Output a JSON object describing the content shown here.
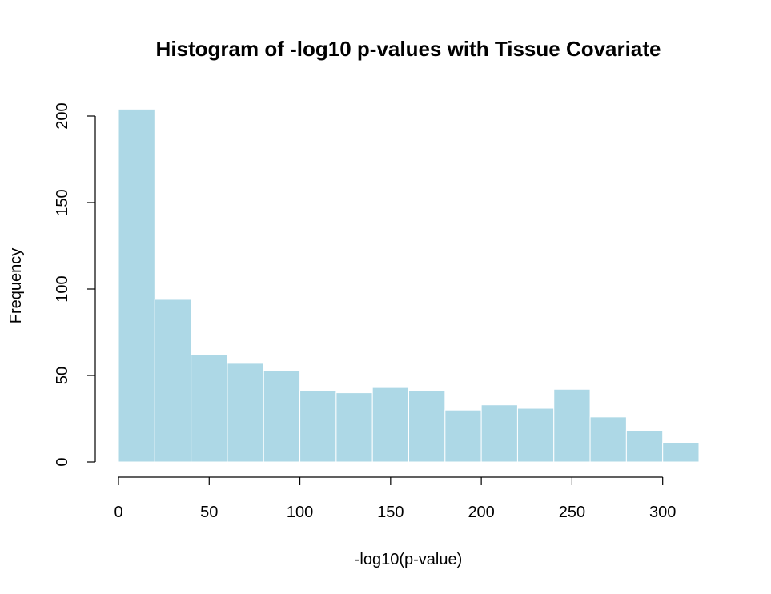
{
  "chart_data": {
    "type": "bar",
    "subtype": "histogram",
    "title": "Histogram of -log10 p-values with Tissue Covariate",
    "xlabel": "-log10(p-value)",
    "ylabel": "Frequency",
    "bins": [
      {
        "x0": 0,
        "x1": 20,
        "count": 204
      },
      {
        "x0": 20,
        "x1": 40,
        "count": 94
      },
      {
        "x0": 40,
        "x1": 60,
        "count": 62
      },
      {
        "x0": 60,
        "x1": 80,
        "count": 57
      },
      {
        "x0": 80,
        "x1": 100,
        "count": 53
      },
      {
        "x0": 100,
        "x1": 120,
        "count": 41
      },
      {
        "x0": 120,
        "x1": 140,
        "count": 40
      },
      {
        "x0": 140,
        "x1": 160,
        "count": 43
      },
      {
        "x0": 160,
        "x1": 180,
        "count": 41
      },
      {
        "x0": 180,
        "x1": 200,
        "count": 30
      },
      {
        "x0": 200,
        "x1": 220,
        "count": 33
      },
      {
        "x0": 220,
        "x1": 240,
        "count": 31
      },
      {
        "x0": 240,
        "x1": 260,
        "count": 42
      },
      {
        "x0": 260,
        "x1": 280,
        "count": 26
      },
      {
        "x0": 280,
        "x1": 300,
        "count": 18
      },
      {
        "x0": 300,
        "x1": 320,
        "count": 11
      }
    ],
    "xlim": [
      0,
      320
    ],
    "ylim": [
      0,
      200
    ],
    "xticks": [
      "0",
      "50",
      "100",
      "150",
      "200",
      "250",
      "300"
    ],
    "yticks": [
      "0",
      "50",
      "100",
      "150",
      "200"
    ],
    "bar_color": "#add8e6",
    "bar_border_color": "#ffffff",
    "grid": false,
    "legend": "none"
  }
}
